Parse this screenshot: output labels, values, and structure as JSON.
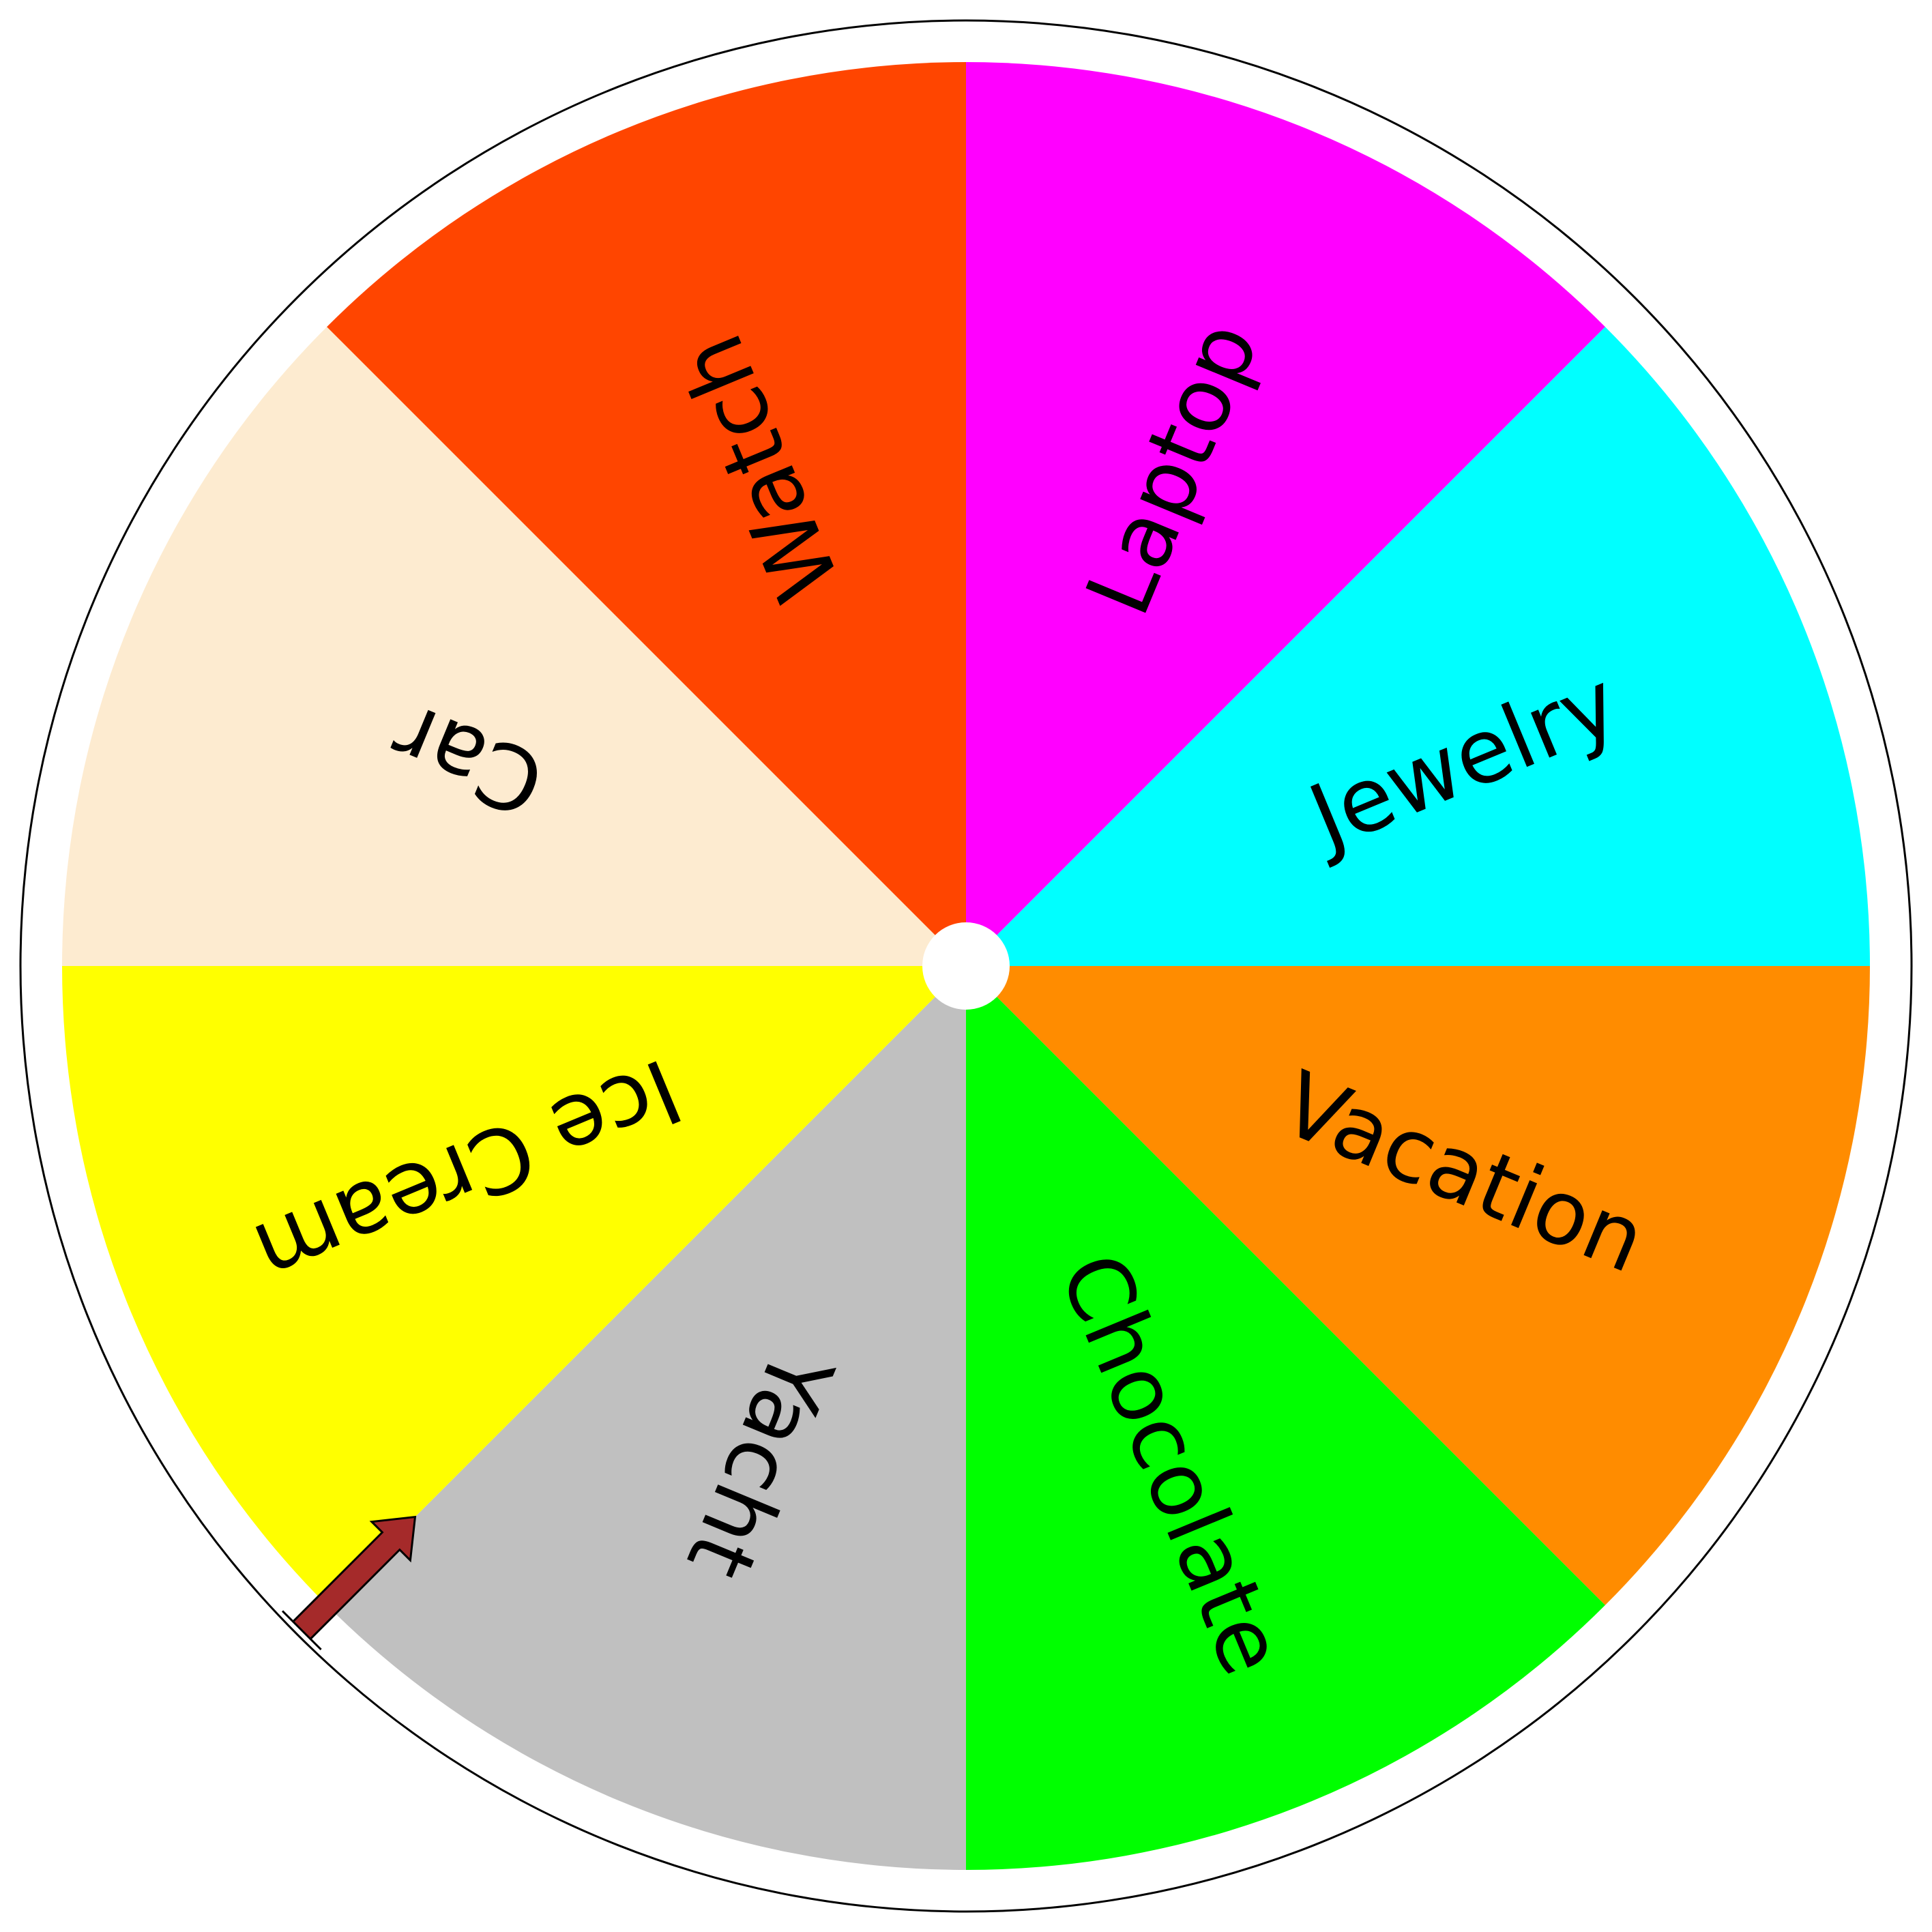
{
  "wheel": {
    "segments": [
      {
        "label": "Laptop",
        "color": "#ff00ff"
      },
      {
        "label": "Jewelry",
        "color": "#00ffff"
      },
      {
        "label": "Vacation",
        "color": "#ff8c00"
      },
      {
        "label": "Chocolate",
        "color": "#00ff00"
      },
      {
        "label": "Yacht",
        "color": "#c0c0c0"
      },
      {
        "label": "Ice Cream",
        "color": "#ffff00"
      },
      {
        "label": "Car",
        "color": "#fdebd0"
      },
      {
        "label": "Watch",
        "color": "#ff4500"
      }
    ],
    "rim_color": "#ffffff",
    "outline_color": "#000000",
    "hub_color": "#ffffff"
  },
  "pointer": {
    "icon": "arrow-icon",
    "color": "#a52a2a",
    "outline_color": "#000000"
  }
}
